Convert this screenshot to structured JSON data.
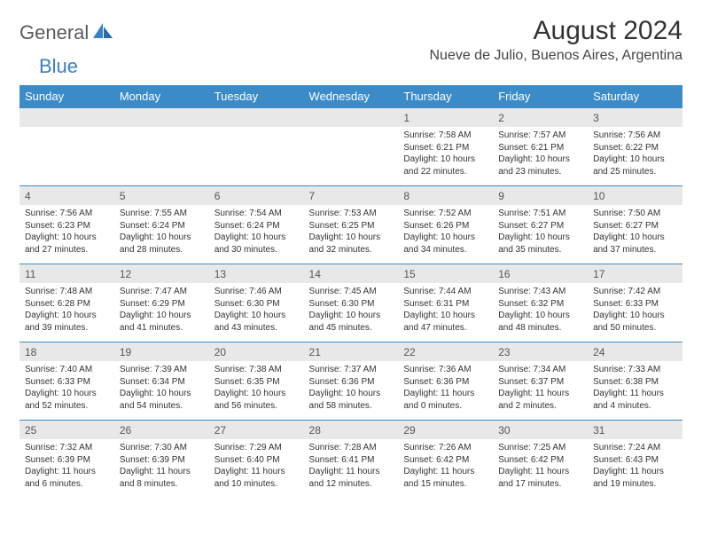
{
  "logo": {
    "text1": "General",
    "text2": "Blue"
  },
  "title": "August 2024",
  "location": "Nueve de Julio, Buenos Aires, Argentina",
  "colors": {
    "header_bg": "#3b8bc9",
    "header_text": "#ffffff",
    "daynum_bg": "#e8e8e8",
    "rule": "#3b8bc9",
    "logo_gray": "#5a5a5a",
    "logo_blue": "#3b7fc4"
  },
  "dayNames": [
    "Sunday",
    "Monday",
    "Tuesday",
    "Wednesday",
    "Thursday",
    "Friday",
    "Saturday"
  ],
  "weeks": [
    [
      null,
      null,
      null,
      null,
      {
        "n": "1",
        "sr": "Sunrise: 7:58 AM",
        "ss": "Sunset: 6:21 PM",
        "d1": "Daylight: 10 hours",
        "d2": "and 22 minutes."
      },
      {
        "n": "2",
        "sr": "Sunrise: 7:57 AM",
        "ss": "Sunset: 6:21 PM",
        "d1": "Daylight: 10 hours",
        "d2": "and 23 minutes."
      },
      {
        "n": "3",
        "sr": "Sunrise: 7:56 AM",
        "ss": "Sunset: 6:22 PM",
        "d1": "Daylight: 10 hours",
        "d2": "and 25 minutes."
      }
    ],
    [
      {
        "n": "4",
        "sr": "Sunrise: 7:56 AM",
        "ss": "Sunset: 6:23 PM",
        "d1": "Daylight: 10 hours",
        "d2": "and 27 minutes."
      },
      {
        "n": "5",
        "sr": "Sunrise: 7:55 AM",
        "ss": "Sunset: 6:24 PM",
        "d1": "Daylight: 10 hours",
        "d2": "and 28 minutes."
      },
      {
        "n": "6",
        "sr": "Sunrise: 7:54 AM",
        "ss": "Sunset: 6:24 PM",
        "d1": "Daylight: 10 hours",
        "d2": "and 30 minutes."
      },
      {
        "n": "7",
        "sr": "Sunrise: 7:53 AM",
        "ss": "Sunset: 6:25 PM",
        "d1": "Daylight: 10 hours",
        "d2": "and 32 minutes."
      },
      {
        "n": "8",
        "sr": "Sunrise: 7:52 AM",
        "ss": "Sunset: 6:26 PM",
        "d1": "Daylight: 10 hours",
        "d2": "and 34 minutes."
      },
      {
        "n": "9",
        "sr": "Sunrise: 7:51 AM",
        "ss": "Sunset: 6:27 PM",
        "d1": "Daylight: 10 hours",
        "d2": "and 35 minutes."
      },
      {
        "n": "10",
        "sr": "Sunrise: 7:50 AM",
        "ss": "Sunset: 6:27 PM",
        "d1": "Daylight: 10 hours",
        "d2": "and 37 minutes."
      }
    ],
    [
      {
        "n": "11",
        "sr": "Sunrise: 7:48 AM",
        "ss": "Sunset: 6:28 PM",
        "d1": "Daylight: 10 hours",
        "d2": "and 39 minutes."
      },
      {
        "n": "12",
        "sr": "Sunrise: 7:47 AM",
        "ss": "Sunset: 6:29 PM",
        "d1": "Daylight: 10 hours",
        "d2": "and 41 minutes."
      },
      {
        "n": "13",
        "sr": "Sunrise: 7:46 AM",
        "ss": "Sunset: 6:30 PM",
        "d1": "Daylight: 10 hours",
        "d2": "and 43 minutes."
      },
      {
        "n": "14",
        "sr": "Sunrise: 7:45 AM",
        "ss": "Sunset: 6:30 PM",
        "d1": "Daylight: 10 hours",
        "d2": "and 45 minutes."
      },
      {
        "n": "15",
        "sr": "Sunrise: 7:44 AM",
        "ss": "Sunset: 6:31 PM",
        "d1": "Daylight: 10 hours",
        "d2": "and 47 minutes."
      },
      {
        "n": "16",
        "sr": "Sunrise: 7:43 AM",
        "ss": "Sunset: 6:32 PM",
        "d1": "Daylight: 10 hours",
        "d2": "and 48 minutes."
      },
      {
        "n": "17",
        "sr": "Sunrise: 7:42 AM",
        "ss": "Sunset: 6:33 PM",
        "d1": "Daylight: 10 hours",
        "d2": "and 50 minutes."
      }
    ],
    [
      {
        "n": "18",
        "sr": "Sunrise: 7:40 AM",
        "ss": "Sunset: 6:33 PM",
        "d1": "Daylight: 10 hours",
        "d2": "and 52 minutes."
      },
      {
        "n": "19",
        "sr": "Sunrise: 7:39 AM",
        "ss": "Sunset: 6:34 PM",
        "d1": "Daylight: 10 hours",
        "d2": "and 54 minutes."
      },
      {
        "n": "20",
        "sr": "Sunrise: 7:38 AM",
        "ss": "Sunset: 6:35 PM",
        "d1": "Daylight: 10 hours",
        "d2": "and 56 minutes."
      },
      {
        "n": "21",
        "sr": "Sunrise: 7:37 AM",
        "ss": "Sunset: 6:36 PM",
        "d1": "Daylight: 10 hours",
        "d2": "and 58 minutes."
      },
      {
        "n": "22",
        "sr": "Sunrise: 7:36 AM",
        "ss": "Sunset: 6:36 PM",
        "d1": "Daylight: 11 hours",
        "d2": "and 0 minutes."
      },
      {
        "n": "23",
        "sr": "Sunrise: 7:34 AM",
        "ss": "Sunset: 6:37 PM",
        "d1": "Daylight: 11 hours",
        "d2": "and 2 minutes."
      },
      {
        "n": "24",
        "sr": "Sunrise: 7:33 AM",
        "ss": "Sunset: 6:38 PM",
        "d1": "Daylight: 11 hours",
        "d2": "and 4 minutes."
      }
    ],
    [
      {
        "n": "25",
        "sr": "Sunrise: 7:32 AM",
        "ss": "Sunset: 6:39 PM",
        "d1": "Daylight: 11 hours",
        "d2": "and 6 minutes."
      },
      {
        "n": "26",
        "sr": "Sunrise: 7:30 AM",
        "ss": "Sunset: 6:39 PM",
        "d1": "Daylight: 11 hours",
        "d2": "and 8 minutes."
      },
      {
        "n": "27",
        "sr": "Sunrise: 7:29 AM",
        "ss": "Sunset: 6:40 PM",
        "d1": "Daylight: 11 hours",
        "d2": "and 10 minutes."
      },
      {
        "n": "28",
        "sr": "Sunrise: 7:28 AM",
        "ss": "Sunset: 6:41 PM",
        "d1": "Daylight: 11 hours",
        "d2": "and 12 minutes."
      },
      {
        "n": "29",
        "sr": "Sunrise: 7:26 AM",
        "ss": "Sunset: 6:42 PM",
        "d1": "Daylight: 11 hours",
        "d2": "and 15 minutes."
      },
      {
        "n": "30",
        "sr": "Sunrise: 7:25 AM",
        "ss": "Sunset: 6:42 PM",
        "d1": "Daylight: 11 hours",
        "d2": "and 17 minutes."
      },
      {
        "n": "31",
        "sr": "Sunrise: 7:24 AM",
        "ss": "Sunset: 6:43 PM",
        "d1": "Daylight: 11 hours",
        "d2": "and 19 minutes."
      }
    ]
  ]
}
